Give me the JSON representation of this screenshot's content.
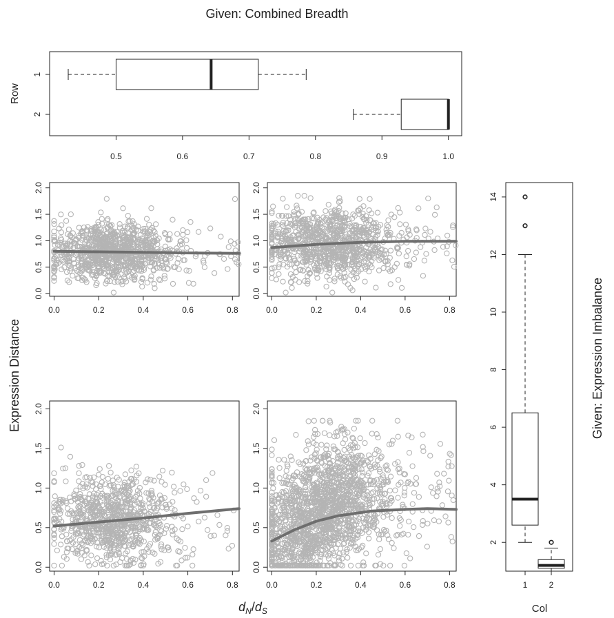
{
  "title": "Given: Combined Breadth",
  "ylabel": "Expression Distance",
  "xlabel": "d_N/d_S",
  "xlabel_parts": {
    "d1": "d",
    "s1": "N",
    "slash": "/",
    "d2": "d",
    "s2": "S"
  },
  "right_label": "Given: Expression Imbalance",
  "colors": {
    "points": "#b4b4b4",
    "smooth": "#6e6e6e",
    "frame": "#222222"
  },
  "chart_data": [
    {
      "type": "boxplot",
      "id": "top-breadth",
      "orientation": "horizontal",
      "ylabel": "Row",
      "categories": [
        "1",
        "2"
      ],
      "xlim": [
        0.4,
        1.02
      ],
      "xticks": [
        "0.5",
        "0.6",
        "0.7",
        "0.8",
        "0.9",
        "1.0"
      ],
      "boxes": [
        {
          "category": "1",
          "whisker_low": 0.428,
          "q1": 0.5,
          "median": 0.643,
          "q3": 0.714,
          "whisker_high": 0.786
        },
        {
          "category": "2",
          "whisker_low": 0.857,
          "q1": 0.929,
          "median": 1.0,
          "q3": 1.0,
          "whisker_high": 1.0
        }
      ]
    },
    {
      "type": "scatter",
      "id": "panel-1-1",
      "xlim": [
        -0.02,
        0.83
      ],
      "ylim": [
        -0.05,
        2.1
      ],
      "xticks": [
        "0.0",
        "0.2",
        "0.4",
        "0.6",
        "0.8"
      ],
      "yticks": [
        "0.0",
        "0.5",
        "1.0",
        "1.5",
        "2.0"
      ],
      "points_description": "about 1000 points, dense in x 0.1–0.4, y 0.2–1.45",
      "smooth": [
        [
          0,
          0.8
        ],
        [
          0.2,
          0.79
        ],
        [
          0.4,
          0.78
        ],
        [
          0.6,
          0.77
        ],
        [
          0.83,
          0.76
        ]
      ]
    },
    {
      "type": "scatter",
      "id": "panel-1-2",
      "xlim": [
        -0.02,
        0.83
      ],
      "ylim": [
        -0.05,
        2.1
      ],
      "xticks": [
        "0.0",
        "0.2",
        "0.4",
        "0.6",
        "0.8"
      ],
      "yticks": [
        "0.0",
        "0.5",
        "1.0",
        "1.5",
        "2.0"
      ],
      "points_description": "about 1000 points, dense in x 0.05–0.45, y 0.15–1.75",
      "smooth": [
        [
          0,
          0.87
        ],
        [
          0.2,
          0.93
        ],
        [
          0.4,
          0.97
        ],
        [
          0.6,
          0.99
        ],
        [
          0.83,
          0.99
        ]
      ]
    },
    {
      "type": "scatter",
      "id": "panel-2-1",
      "xlim": [
        -0.02,
        0.83
      ],
      "ylim": [
        -0.05,
        2.1
      ],
      "xticks": [
        "0.0",
        "0.2",
        "0.4",
        "0.6",
        "0.8"
      ],
      "yticks": [
        "0.0",
        "0.5",
        "1.0",
        "1.5",
        "2.0"
      ],
      "points_description": "about 900 points, dense in x 0.1–0.4, y 0.05–1.4",
      "smooth": [
        [
          0,
          0.52
        ],
        [
          0.2,
          0.57
        ],
        [
          0.4,
          0.62
        ],
        [
          0.6,
          0.68
        ],
        [
          0.83,
          0.74
        ]
      ]
    },
    {
      "type": "scatter",
      "id": "panel-2-2",
      "xlim": [
        -0.02,
        0.83
      ],
      "ylim": [
        -0.05,
        2.1
      ],
      "xticks": [
        "0.0",
        "0.2",
        "0.4",
        "0.6",
        "0.8"
      ],
      "yticks": [
        "0.0",
        "0.5",
        "1.0",
        "1.5",
        "2.0"
      ],
      "points_description": "about 1800 points, dense in x 0–0.45, y 0–1.8",
      "smooth": [
        [
          0,
          0.33
        ],
        [
          0.1,
          0.47
        ],
        [
          0.2,
          0.58
        ],
        [
          0.3,
          0.65
        ],
        [
          0.45,
          0.71
        ],
        [
          0.6,
          0.73
        ],
        [
          0.7,
          0.74
        ],
        [
          0.83,
          0.73
        ]
      ]
    },
    {
      "type": "boxplot",
      "id": "right-imbalance",
      "orientation": "vertical",
      "xlabel": "Col",
      "categories": [
        "1",
        "2"
      ],
      "ylim": [
        1.0,
        14.5
      ],
      "yticks": [
        "2",
        "4",
        "6",
        "8",
        "10",
        "12",
        "14"
      ],
      "boxes": [
        {
          "category": "1",
          "whisker_low": 2.0,
          "q1": 2.6,
          "median": 3.5,
          "q3": 6.5,
          "whisker_high": 12.0,
          "outliers": [
            13,
            14
          ]
        },
        {
          "category": "2",
          "whisker_low": 1.0,
          "q1": 1.1,
          "median": 1.2,
          "q3": 1.4,
          "whisker_high": 1.8,
          "outliers": [
            2.0
          ]
        }
      ]
    }
  ]
}
